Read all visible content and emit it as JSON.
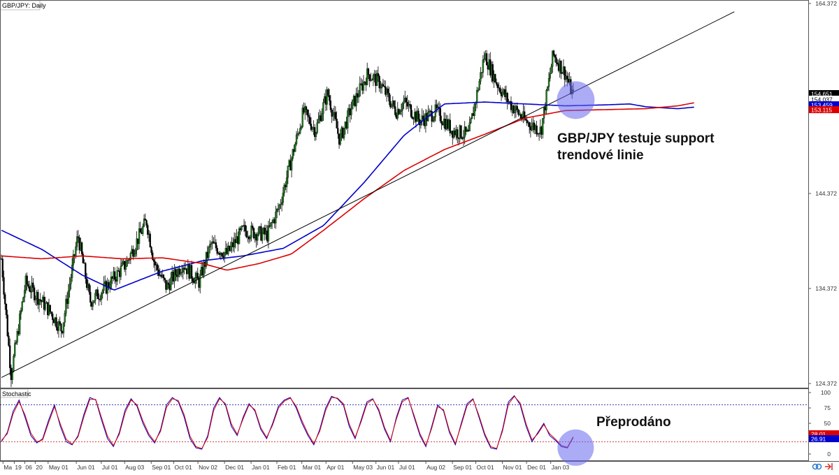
{
  "chart_data": [
    {
      "type": "candlestick",
      "title": "GBP/JPY: Daily",
      "y_ticks": [
        "164.372",
        "144.372",
        "134.372",
        "124.372"
      ],
      "x_ticks": [
        "Ma",
        "19",
        "06",
        "20",
        "May 01",
        "Jun 01",
        "Jul 01",
        "Aug 03",
        "Sep 01",
        "Oct 01",
        "Nov 02",
        "Dec 01",
        "Jan 01",
        "Feb 01",
        "Mar 01",
        "Apr 01",
        "May 03",
        "Jun 01",
        "Jul 01",
        "Aug 02",
        "Sep 01",
        "Oct 01",
        "Nov 01",
        "Dec 01",
        "Jan 03"
      ],
      "ylim": [
        124.372,
        164.372
      ],
      "price_labels": [
        {
          "value": "154.651",
          "color": "#000000",
          "text_color": "#ffffff"
        },
        {
          "value": "154.037",
          "color": "#ffffff",
          "text_color": "#000000"
        },
        {
          "value": "153.459",
          "color": "#0000cc",
          "text_color": "#ffffff"
        },
        {
          "value": "153.115",
          "color": "#dd0000",
          "text_color": "#ffffff"
        }
      ],
      "series": [
        {
          "name": "",
          "color": "#0000cc",
          "kind": "moving-average",
          "points": [
            [
              0,
              140.5
            ],
            [
              0.05,
              138.5
            ],
            [
              0.1,
              135.8
            ],
            [
              0.14,
              134.2
            ],
            [
              0.2,
              136.2
            ],
            [
              0.25,
              137.3
            ],
            [
              0.3,
              137.8
            ],
            [
              0.35,
              138.6
            ],
            [
              0.4,
              141.0
            ],
            [
              0.45,
              145.5
            ],
            [
              0.5,
              150.5
            ],
            [
              0.55,
              153.8
            ],
            [
              0.6,
              154.0
            ],
            [
              0.65,
              153.8
            ],
            [
              0.7,
              153.6
            ],
            [
              0.75,
              153.7
            ],
            [
              0.78,
              153.8
            ],
            [
              0.8,
              153.5
            ],
            [
              0.84,
              153.3
            ],
            [
              0.86,
              153.46
            ]
          ]
        },
        {
          "name": "",
          "color": "#dd0000",
          "kind": "moving-average",
          "points": [
            [
              0,
              137.8
            ],
            [
              0.05,
              137.5
            ],
            [
              0.1,
              137.8
            ],
            [
              0.15,
              137.5
            ],
            [
              0.2,
              137.6
            ],
            [
              0.25,
              137.0
            ],
            [
              0.28,
              136.3
            ],
            [
              0.32,
              137.0
            ],
            [
              0.36,
              138.0
            ],
            [
              0.4,
              140.5
            ],
            [
              0.45,
              143.8
            ],
            [
              0.5,
              146.8
            ],
            [
              0.55,
              149.0
            ],
            [
              0.6,
              150.6
            ],
            [
              0.65,
              152.3
            ],
            [
              0.7,
              153.1
            ],
            [
              0.75,
              153.2
            ],
            [
              0.8,
              153.3
            ],
            [
              0.84,
              153.6
            ],
            [
              0.86,
              153.92
            ]
          ]
        }
      ],
      "trendline": {
        "from": [
          0.0,
          125.0
        ],
        "to": [
          0.91,
          163.5
        ],
        "color": "#000000"
      },
      "annotations": [
        {
          "text": "GBP/JPY testuje support trendové linie",
          "lines": [
            "GBP/JPY testuje support",
            "trendové linie"
          ]
        },
        {
          "marker": "circle",
          "color": "#6666ee",
          "at": [
            0.86,
            154.2
          ]
        }
      ]
    },
    {
      "type": "line",
      "title": "Stochastic",
      "ylim": [
        0,
        100
      ],
      "y_ticks": [
        "100",
        "75",
        "50",
        "25",
        "0"
      ],
      "levels": [
        {
          "value": 80,
          "color": "#000099"
        },
        {
          "value": 20,
          "color": "#cc0000"
        }
      ],
      "price_labels": [
        {
          "value": "28.01",
          "color": "#dd0000",
          "text_color": "#ffffff"
        },
        {
          "value": "26.91",
          "color": "#0000cc",
          "text_color": "#ffffff"
        }
      ],
      "series": [
        {
          "name": "",
          "color": "#0000cc",
          "values": [
            20,
            35,
            70,
            88,
            60,
            30,
            18,
            25,
            55,
            80,
            45,
            20,
            15,
            30,
            65,
            92,
            88,
            55,
            25,
            12,
            35,
            72,
            90,
            78,
            50,
            30,
            18,
            40,
            80,
            92,
            85,
            60,
            25,
            10,
            8,
            30,
            75,
            92,
            80,
            45,
            30,
            60,
            82,
            70,
            40,
            25,
            50,
            78,
            88,
            92,
            75,
            50,
            30,
            15,
            40,
            75,
            94,
            90,
            80,
            45,
            25,
            55,
            85,
            90,
            70,
            40,
            20,
            60,
            88,
            92,
            60,
            30,
            12,
            45,
            80,
            70,
            35,
            15,
            50,
            82,
            90,
            60,
            30,
            10,
            8,
            40,
            85,
            95,
            80,
            45,
            20,
            35,
            50,
            30,
            22,
            12,
            10,
            27
          ]
        },
        {
          "name": "",
          "color": "#dd0000",
          "values": [
            22,
            33,
            66,
            85,
            64,
            34,
            20,
            23,
            51,
            77,
            49,
            24,
            16,
            28,
            61,
            89,
            89,
            59,
            29,
            14,
            32,
            68,
            88,
            80,
            54,
            33,
            20,
            37,
            76,
            90,
            87,
            64,
            29,
            12,
            9,
            27,
            71,
            90,
            82,
            49,
            32,
            57,
            80,
            72,
            43,
            27,
            47,
            75,
            86,
            91,
            78,
            54,
            33,
            17,
            37,
            71,
            92,
            91,
            82,
            49,
            27,
            52,
            82,
            89,
            73,
            43,
            22,
            57,
            85,
            91,
            63,
            33,
            14,
            42,
            77,
            72,
            38,
            17,
            47,
            79,
            89,
            63,
            33,
            12,
            9,
            37,
            81,
            94,
            83,
            49,
            23,
            33,
            48,
            33,
            24,
            14,
            11,
            28
          ]
        }
      ],
      "annotations": [
        {
          "text": "Přeprodáno"
        },
        {
          "marker": "circle",
          "color": "#6666ee",
          "at": [
            0.86,
            15
          ]
        }
      ]
    }
  ],
  "footer_icons": [
    "link-icon",
    "arrow-icon"
  ]
}
